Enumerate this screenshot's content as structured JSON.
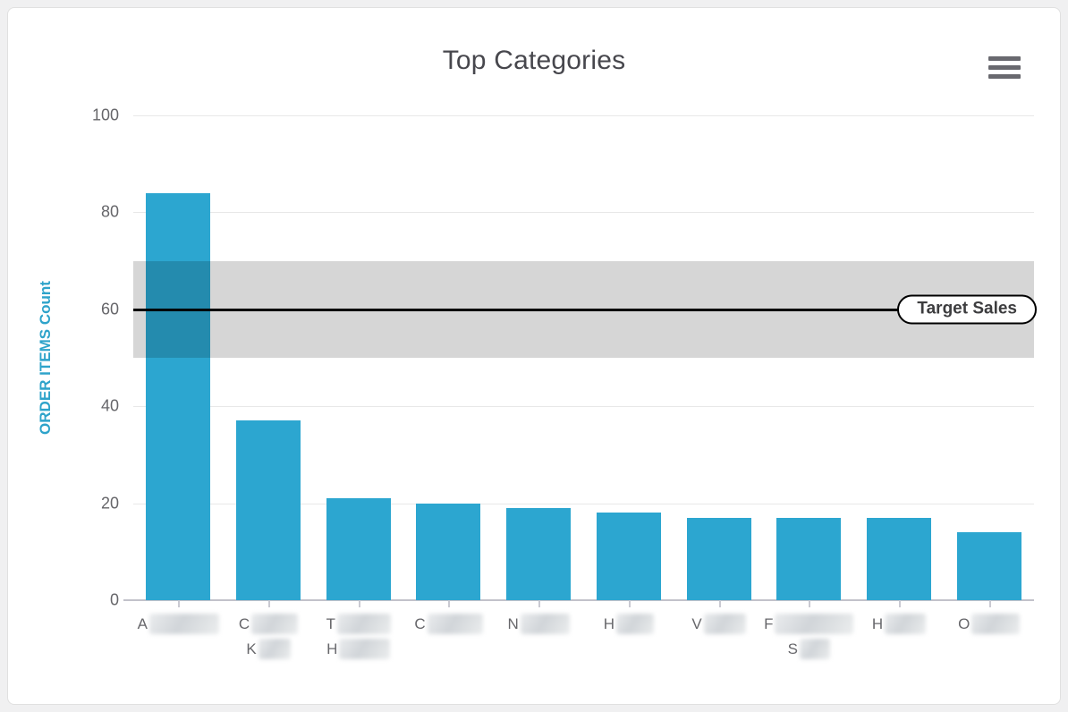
{
  "header": {
    "title": "Top Categories",
    "menu_icon": "hamburger-icon"
  },
  "y_axis": {
    "title": "ORDER ITEMS Count",
    "tick_labels_top_to_bottom": [
      "100",
      "80",
      "60",
      "40",
      "20",
      "0"
    ]
  },
  "chart_data": {
    "type": "bar",
    "title": "Top Categories",
    "xlabel": "",
    "ylabel": "ORDER ITEMS Count",
    "ylim": [
      0,
      100
    ],
    "ytick_values": [
      0,
      20,
      40,
      60,
      80,
      100
    ],
    "grid": true,
    "legend": false,
    "bar_color": "#2CA6D0",
    "values": [
      84,
      37,
      21,
      20,
      19,
      18,
      17,
      17,
      17,
      14
    ],
    "categories": [
      {
        "visible": "A███ (redacted)",
        "lines": [
          {
            "letter": "A",
            "blur_width": 78
          }
        ]
      },
      {
        "visible": "C██ K█ (redacted)",
        "lines": [
          {
            "letter": "C",
            "blur_width": 52
          },
          {
            "letter": "K",
            "blur_width": 36
          }
        ]
      },
      {
        "visible": "T██ H██ (redacted)",
        "lines": [
          {
            "letter": "T",
            "blur_width": 60
          },
          {
            "letter": "H",
            "blur_width": 57
          }
        ]
      },
      {
        "visible": "C██ (redacted)",
        "lines": [
          {
            "letter": "C",
            "blur_width": 62
          }
        ]
      },
      {
        "visible": "N██ (redacted)",
        "lines": [
          {
            "letter": "N",
            "blur_width": 55
          }
        ]
      },
      {
        "visible": "H█ (redacted)",
        "lines": [
          {
            "letter": "H",
            "blur_width": 42
          }
        ]
      },
      {
        "visible": "V█ (redacted)",
        "lines": [
          {
            "letter": "V",
            "blur_width": 47
          }
        ]
      },
      {
        "visible": "F███ S█ (redacted)",
        "lines": [
          {
            "letter": "F",
            "blur_width": 88
          },
          {
            "letter": "S",
            "blur_width": 34
          }
        ]
      },
      {
        "visible": "H█ (redacted)",
        "lines": [
          {
            "letter": "H",
            "blur_width": 46
          }
        ]
      },
      {
        "visible": "O██ (redacted)",
        "lines": [
          {
            "letter": "O",
            "blur_width": 54
          }
        ]
      }
    ],
    "plot_band": {
      "from": 50,
      "to": 70,
      "color": "rgba(0,0,0,0.16)"
    },
    "plot_line": {
      "value": 60,
      "width": 3,
      "color": "#000000",
      "label": "Target Sales"
    },
    "annotations": [
      "Target Sales"
    ],
    "redaction": "category names are blurred out in the source image; only first letters visible"
  },
  "colors": {
    "page_background": "#F0F0F1",
    "card_background": "#FFFFFF",
    "card_border": "#E0E0E0",
    "bar": "#2CA6D0",
    "axis_title": "#2EA3CA",
    "tick_label": "#66666A",
    "title_text": "#47474D",
    "gridline": "#E8E8E8",
    "axis_line": "#C2C2CA",
    "target_line": "#000000"
  }
}
